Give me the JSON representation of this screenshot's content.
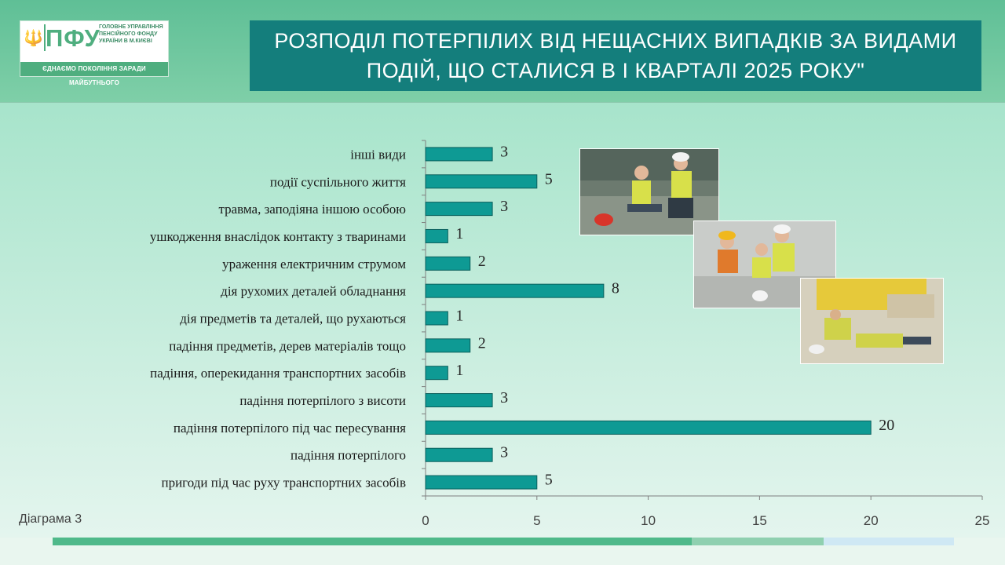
{
  "logo": {
    "emblem_icon": "tryzub-icon",
    "abbr": "ПФУ",
    "org": "ГОЛОВНЕ УПРАВЛІННЯ\nПЕНСІЙНОГО ФОНДУ\nУКРАЇНИ В М.КИЄВІ",
    "motto": "ЄДНАЄМО ПОКОЛІННЯ ЗАРАДИ МАЙБУТНЬОГО"
  },
  "title": "РОЗПОДІЛ ПОТЕРПІЛИХ ВІД НЕЩАСНИХ ВИПАДКІВ ЗА ВИДАМИ ПОДІЙ, ЩО СТАЛИСЯ В І КВАРТАЛІ 2025 РОКУ\"",
  "diagram_label": "Діаграма 3",
  "colors": {
    "bar": "#0e9a94",
    "title_bg": "#147e7c",
    "header": "#5fbf96"
  },
  "chart_data": {
    "type": "bar",
    "orientation": "horizontal",
    "categories": [
      "інші види",
      "події суспільного життя",
      "травма, заподіяна іншою особою",
      "ушкодження внаслідок контакту з тваринами",
      "ураження електричним струмом",
      "дія рухомих деталей обладнання",
      "дія предметів та деталей, що рухаються",
      "падіння предметів, дерев матеріалів тощо",
      "падіння, оперекидання транспортних засобів",
      "падіння потерпілого з висоти",
      "падіння потерпілого під час пересування",
      "падіння потерпілого",
      "пригоди під час руху транспортних засобів"
    ],
    "values": [
      3,
      5,
      3,
      1,
      2,
      8,
      1,
      2,
      1,
      3,
      20,
      3,
      5
    ],
    "xlim": [
      0,
      25
    ],
    "xticks": [
      "0",
      "5",
      "10",
      "15",
      "20",
      "25"
    ],
    "grid": false,
    "legend": "none"
  }
}
